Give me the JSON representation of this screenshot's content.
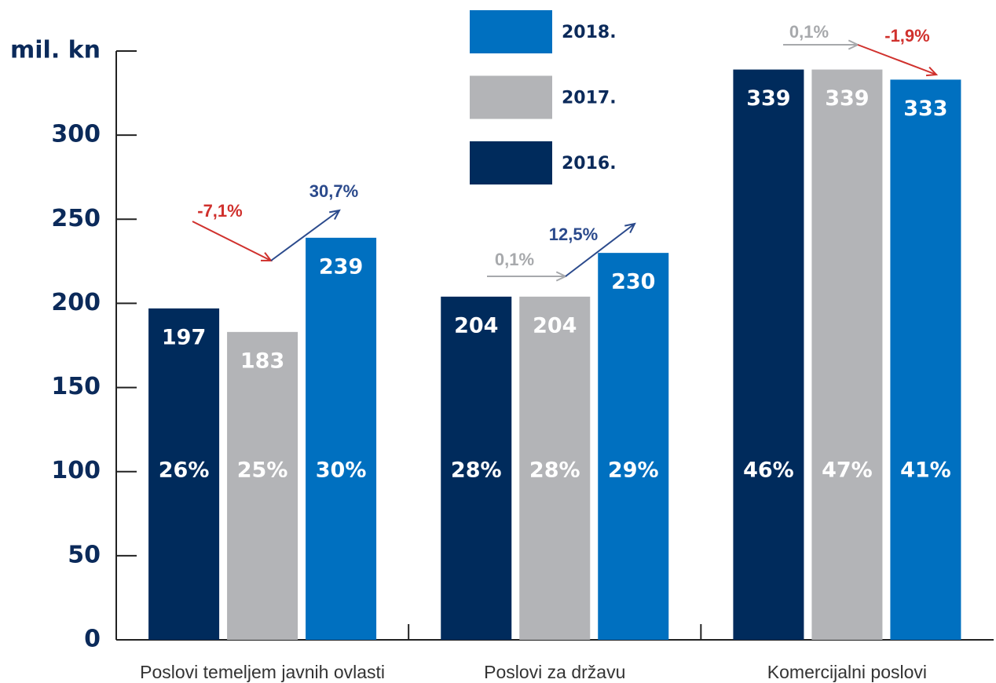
{
  "chart_data": {
    "type": "bar",
    "y_label": "mil. kn",
    "categories": [
      "Poslovi temeljem javnih ovlasti",
      "Poslovi za državu",
      "Komercijalni poslovi"
    ],
    "series": [
      {
        "name": "2016.",
        "color": "#002b5c",
        "values": [
          197,
          204,
          339
        ],
        "shares": [
          "26%",
          "28%",
          "46%"
        ]
      },
      {
        "name": "2017.",
        "color": "#b3b4b7",
        "values": [
          183,
          204,
          339
        ],
        "shares": [
          "25%",
          "28%",
          "47%"
        ]
      },
      {
        "name": "2018.",
        "color": "#0070c0",
        "values": [
          239,
          230,
          333
        ],
        "shares": [
          "30%",
          "29%",
          "41%"
        ]
      }
    ],
    "annotations": [
      {
        "text": "-7,1%",
        "color": "#d0312d"
      },
      {
        "text": "30,7%",
        "color": "#2b4a8c"
      },
      {
        "text": "0,1%",
        "color": "#a7a9ac"
      },
      {
        "text": "12,5%",
        "color": "#2b4a8c"
      },
      {
        "text": "0,1%",
        "color": "#a7a9ac"
      },
      {
        "text": "-1,9%",
        "color": "#d0312d"
      }
    ],
    "ylim": [
      0,
      350
    ],
    "yticks": [
      0,
      50,
      100,
      150,
      200,
      250,
      300
    ]
  }
}
